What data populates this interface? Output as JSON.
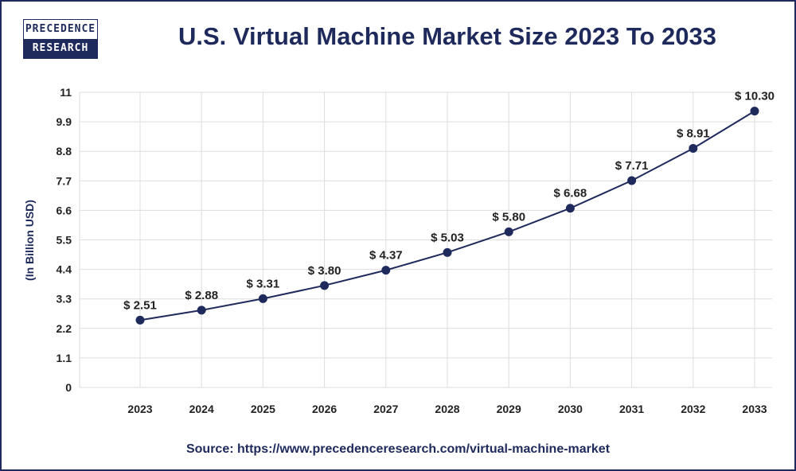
{
  "logo": {
    "line1": "PRECEDENCE",
    "line2": "RESEARCH"
  },
  "source": "Source: https://www.precedenceresearch.com/virtual-machine-market",
  "colors": {
    "line": "#1f2a5c",
    "marker": "#1f2a5c",
    "grid": "#dddddd",
    "title": "#1f2a5c"
  },
  "chart_data": {
    "type": "line",
    "title": "U.S. Virtual Machine Market Size 2023 To 2033",
    "xlabel": "",
    "ylabel": "(In Billion USD)",
    "categories": [
      "2023",
      "2024",
      "2025",
      "2026",
      "2027",
      "2028",
      "2029",
      "2030",
      "2031",
      "2032",
      "2033"
    ],
    "values": [
      2.51,
      2.88,
      3.31,
      3.8,
      4.37,
      5.03,
      5.8,
      6.68,
      7.71,
      8.91,
      10.3
    ],
    "data_labels": [
      "$ 2.51",
      "$ 2.88",
      "$ 3.31",
      "$ 3.80",
      "$ 4.37",
      "$ 5.03",
      "$ 5.80",
      "$ 6.68",
      "$ 7.71",
      "$ 8.91",
      "$ 10.30"
    ],
    "yticks": [
      "0",
      "1.1",
      "2.2",
      "3.3",
      "4.4",
      "5.5",
      "6.6",
      "7.7",
      "8.8",
      "9.9",
      "11"
    ],
    "ylim": [
      0,
      11
    ],
    "grid": true,
    "legend": "none"
  }
}
